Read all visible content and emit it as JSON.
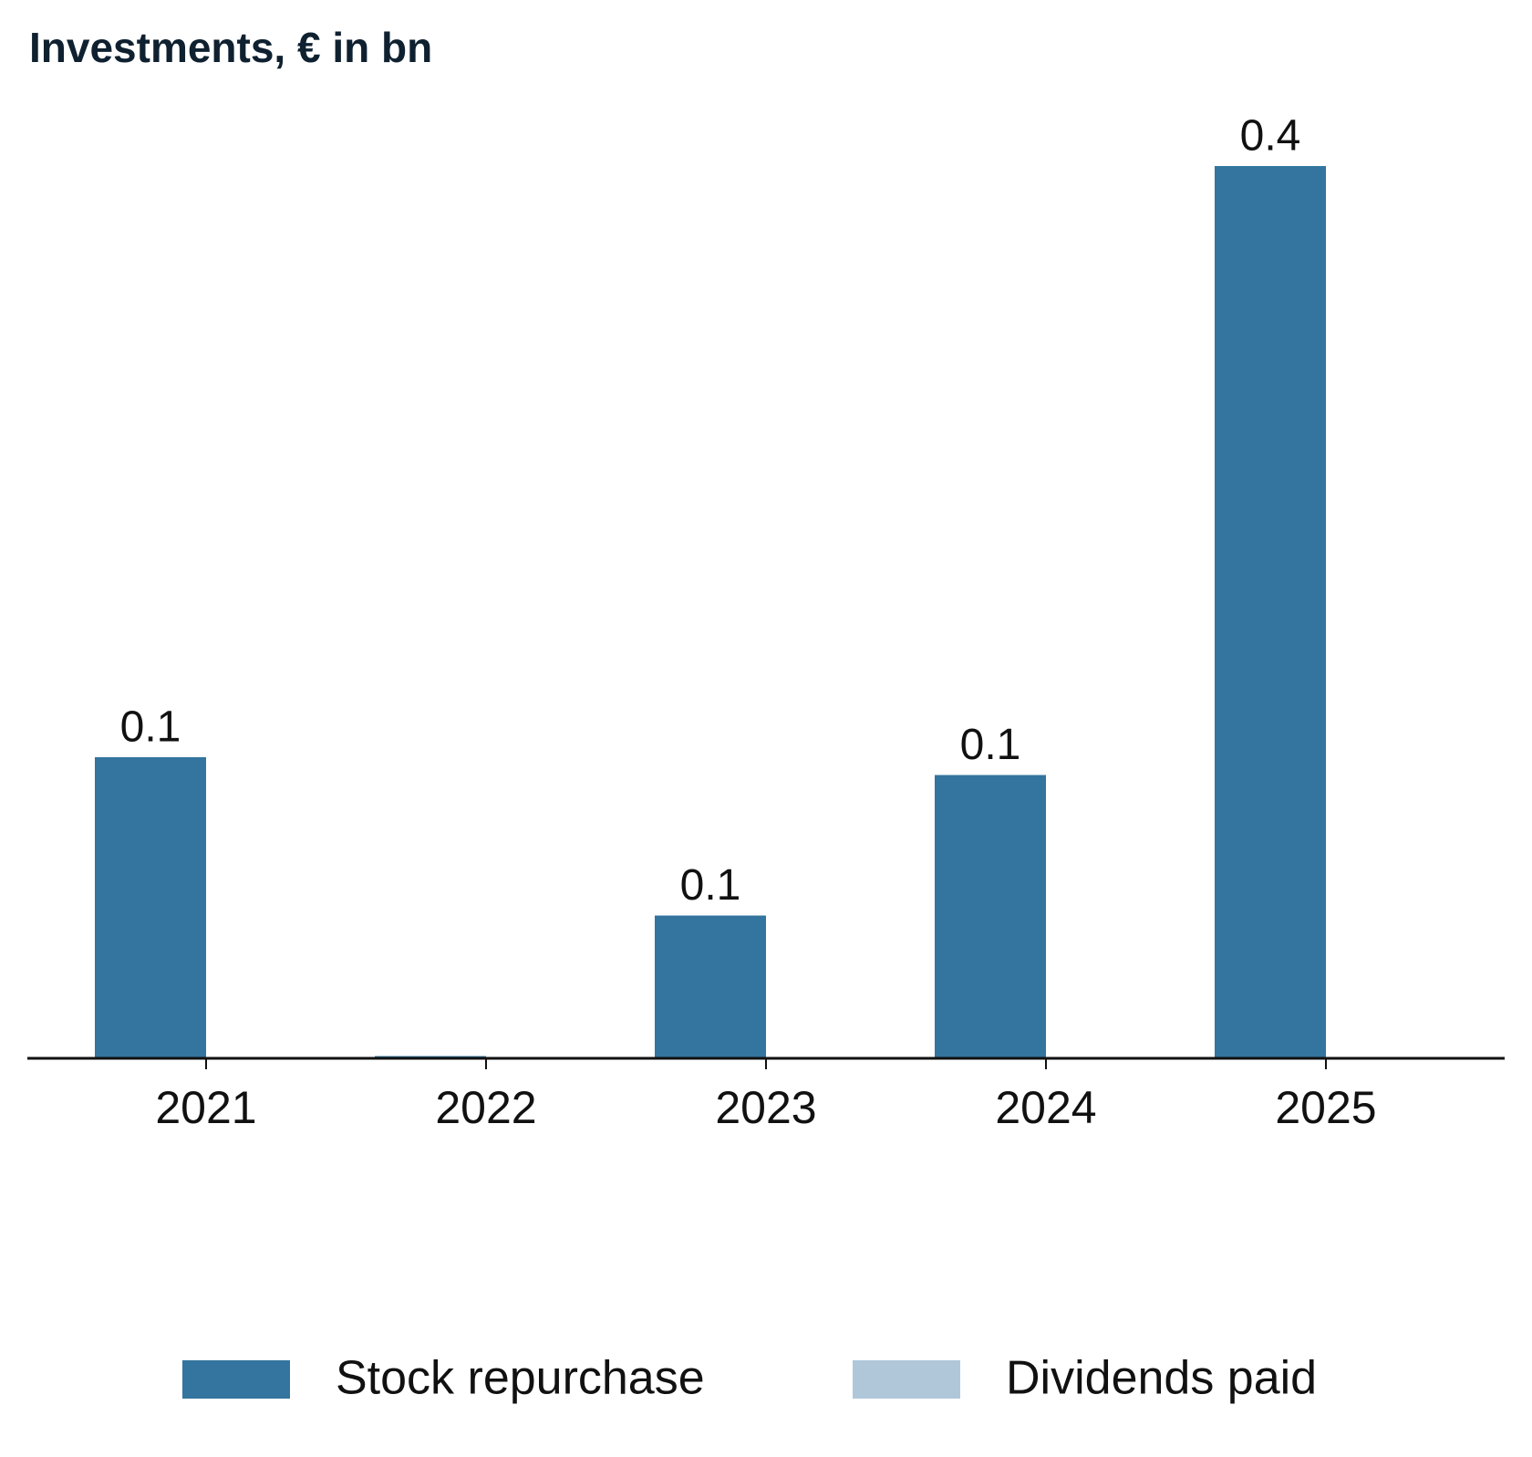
{
  "chart_data": {
    "type": "bar",
    "title": "Investments, € in bn",
    "categories": [
      "2021",
      "2022",
      "2023",
      "2024",
      "2025"
    ],
    "series": [
      {
        "name": "Stock repurchase",
        "color": "#33759e",
        "values": [
          0.135,
          0.001,
          0.064,
          0.127,
          0.4
        ],
        "value_labels": [
          "0.1",
          null,
          "0.1",
          "0.1",
          "0.4"
        ]
      },
      {
        "name": "Dividends paid",
        "color": "#b0c7da",
        "values": [
          0,
          0,
          0,
          0,
          0
        ]
      }
    ],
    "ylim": [
      0,
      0.4
    ],
    "grid": false,
    "legend": "bottom"
  }
}
